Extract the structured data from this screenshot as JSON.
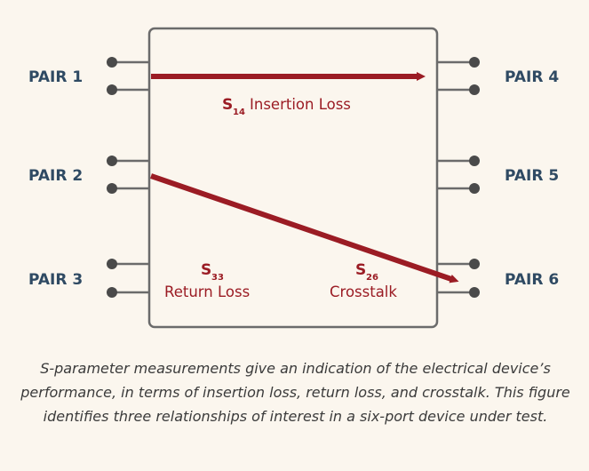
{
  "pairs": {
    "pair1": "PAIR 1",
    "pair2": "PAIR 2",
    "pair3": "PAIR 3",
    "pair4": "PAIR 4",
    "pair5": "PAIR 5",
    "pair6": "PAIR 6"
  },
  "params": {
    "s14": {
      "symbol": "S",
      "subscript": "14",
      "desc": "Insertion Loss"
    },
    "s33": {
      "symbol": "S",
      "subscript": "33",
      "desc": "Return Loss"
    },
    "s26": {
      "symbol": "S",
      "subscript": "26",
      "desc": "Crosstalk"
    }
  },
  "caption": "S-parameter measurements give an indication of the electrical device’s performance, in terms of insertion loss, return loss, and crosstalk. This figure identifies three relationships of interest in a six-port device under test.",
  "colors": {
    "arrow": "#9b1c24",
    "label": "#2f4a63",
    "box_stroke": "#6b6b6b",
    "pin": "#4a4a4a",
    "background": "#fbf6ee"
  }
}
